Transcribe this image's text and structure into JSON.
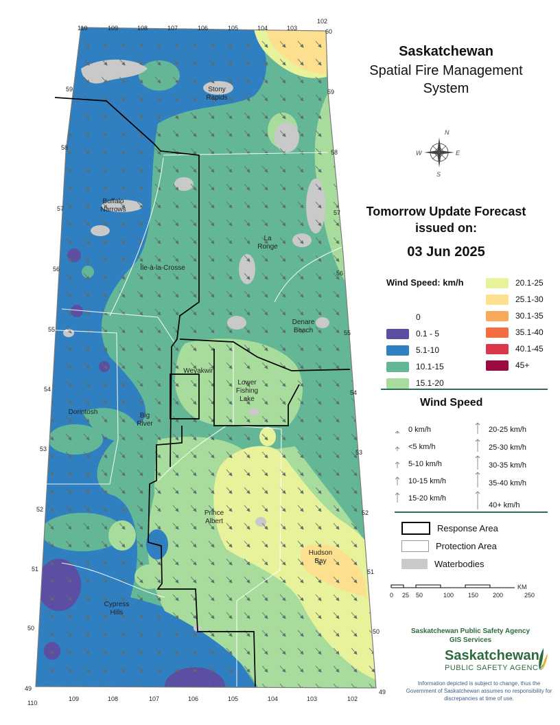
{
  "title": {
    "province": "Saskatchewan",
    "system": "Spatial Fire Management System",
    "forecast_heading": "Tomorrow Update Forecast issued on:",
    "date": "03 Jun 2025"
  },
  "wind_speed_legend": {
    "title": "Wind Speed: km/h",
    "classes": [
      {
        "label": "0",
        "color": ""
      },
      {
        "label": "0.1 - 5",
        "color": "#5b4ea3"
      },
      {
        "label": "5.1-10",
        "color": "#2f7fc1"
      },
      {
        "label": "10.1-15",
        "color": "#63b796"
      },
      {
        "label": "15.1-20",
        "color": "#a7dc9c"
      },
      {
        "label": "20.1-25",
        "color": "#e7f29a"
      },
      {
        "label": "25.1-30",
        "color": "#fcdf8f"
      },
      {
        "label": "30.1-35",
        "color": "#f8aa5c"
      },
      {
        "label": "35.1-40",
        "color": "#f26b41"
      },
      {
        "label": "40.1-45",
        "color": "#d9374b"
      },
      {
        "label": "45+",
        "color": "#9c0a42"
      }
    ]
  },
  "wind_arrow_legend": {
    "title": "Wind Speed",
    "left": [
      "0 km/h",
      "<5 km/h",
      "5-10 km/h",
      "10-15 km/h",
      "15-20 km/h"
    ],
    "right": [
      "20-25 km/h",
      "25-30 km/h",
      "30-35 km/h",
      "35-40 km/h",
      "40+ km/h"
    ]
  },
  "reference_legend": [
    {
      "label": "Response Area",
      "color": "#000000"
    },
    {
      "label": "Protection Area",
      "color": "#999999"
    },
    {
      "label": "Waterbodies",
      "color": "#c9c9c9"
    }
  ],
  "scale": {
    "ticks": [
      "0",
      "25",
      "50",
      "100",
      "150",
      "200",
      "250"
    ],
    "unit": "KM"
  },
  "map_labels": [
    "Stony Rapids",
    "Buffalo Narrows",
    "La Ronge",
    "Île-à-la-Crosse",
    "Denare Beach",
    "Weyakwin",
    "Lower Fishing Lake",
    "Dorintosh",
    "Big River",
    "Prince Albert",
    "Hudson Bay",
    "Cypress Hills"
  ],
  "longitudes_top": [
    "110",
    "109",
    "108",
    "107",
    "106",
    "105",
    "104",
    "103",
    "102"
  ],
  "longitudes_bottom": [
    "110",
    "109",
    "108",
    "107",
    "106",
    "105",
    "104",
    "103",
    "102"
  ],
  "latitudes": [
    "60",
    "59",
    "58",
    "57",
    "56",
    "55",
    "54",
    "53",
    "52",
    "51",
    "50",
    "49"
  ],
  "compass": {
    "n": "N",
    "e": "E",
    "s": "S",
    "w": "W"
  },
  "agency": {
    "name": "Saskatchewan Public Safety Agency",
    "dept": "GIS Services",
    "logo_main": "Saskatchewan",
    "logo_sub": "PUBLIC SAFETY AGENCY",
    "disclaimer": "Information depicted is subject to change, thus the Government of Saskatchewan assumes no responsibility for discrepancies at time of use."
  }
}
